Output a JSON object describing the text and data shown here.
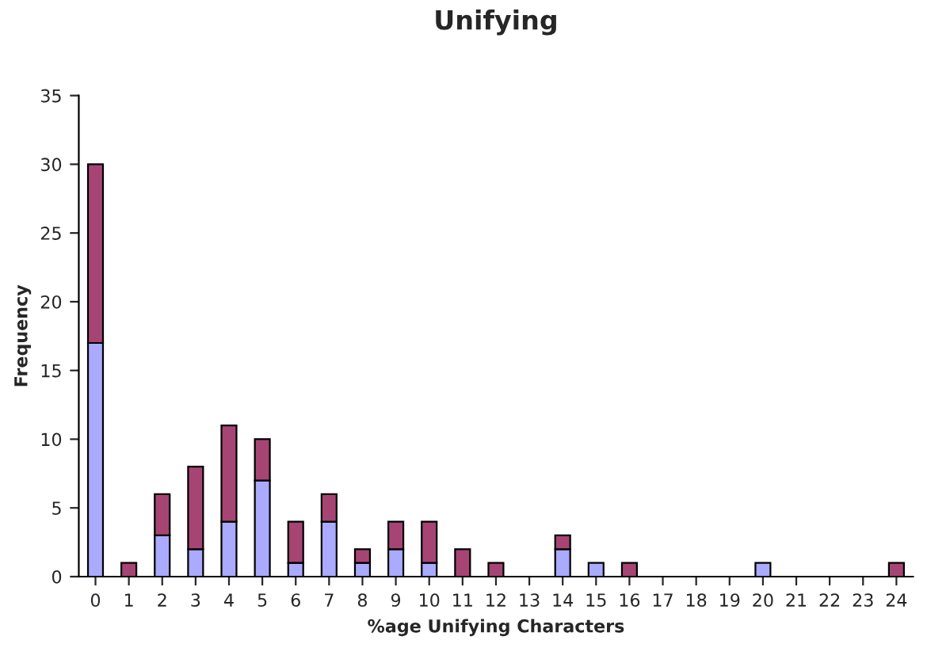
{
  "chart_data": {
    "type": "bar",
    "title": "Unifying",
    "xlabel": "%age Unifying Characters",
    "ylabel": "Frequency",
    "categories": [
      "0",
      "1",
      "2",
      "3",
      "4",
      "5",
      "6",
      "7",
      "8",
      "9",
      "10",
      "11",
      "12",
      "13",
      "14",
      "15",
      "16",
      "17",
      "18",
      "19",
      "20",
      "21",
      "22",
      "23",
      "24"
    ],
    "stacked": true,
    "series": [
      {
        "color": "#aaaaff",
        "values": [
          17,
          null,
          3,
          2,
          4,
          7,
          1,
          4,
          1,
          2,
          1,
          null,
          null,
          null,
          2,
          1,
          null,
          null,
          null,
          null,
          1,
          null,
          null,
          null,
          null
        ]
      },
      {
        "color": "#a64574",
        "values": [
          13,
          1,
          3,
          6,
          7,
          3,
          3,
          2,
          1,
          2,
          3,
          2,
          1,
          null,
          1,
          null,
          1,
          null,
          null,
          null,
          null,
          null,
          null,
          null,
          1
        ]
      }
    ],
    "ylim": [
      0,
      35
    ],
    "yticks": [
      0,
      5,
      10,
      15,
      20,
      25,
      30,
      35
    ],
    "grid": false,
    "legend": false
  }
}
